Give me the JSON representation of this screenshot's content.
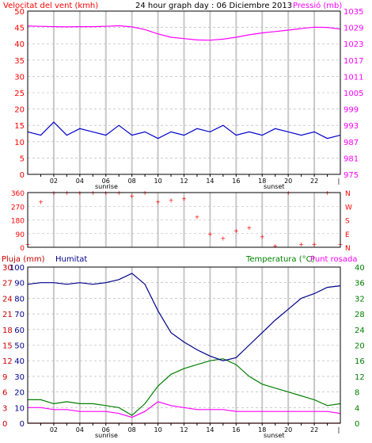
{
  "colors": {
    "wind": "#ff0000",
    "gust": "#ff0000",
    "wind_avg": "#0000cc",
    "wind_green": "#008000",
    "pressure": "#ff00ff",
    "humidity": "#00008b",
    "temperature": "#008000",
    "dewpoint": "#ff00ff",
    "rain": "#cc0000",
    "direction": "#ff0000"
  },
  "chart_data": [
    {
      "type": "line",
      "title": "24 hour graph day : 06 Diciembre 2013",
      "ylabel": "Velocitat del vent (kmh)",
      "y2label": "Pressió (mb)",
      "ylim": [
        0,
        50
      ],
      "yticks": [
        0,
        5,
        10,
        15,
        20,
        25,
        30,
        35,
        40,
        45,
        50
      ],
      "y2lim": [
        975,
        1035
      ],
      "y2ticks": [
        975,
        981,
        987,
        993,
        999,
        1005,
        1011,
        1017,
        1023,
        1029,
        1035
      ],
      "x": [
        0,
        1,
        2,
        3,
        4,
        5,
        6,
        7,
        8,
        9,
        10,
        11,
        12,
        13,
        14,
        15,
        16,
        17,
        18,
        19,
        20,
        21,
        22,
        23,
        24
      ],
      "xticklabels": [
        "02",
        "04",
        "06",
        "08",
        "10",
        "12",
        "14",
        "16",
        "18",
        "20",
        "22"
      ],
      "annotations": [
        "sunrise",
        "sunset"
      ],
      "grid": true,
      "series": [
        {
          "name": "Velocitat del vent (kmh)",
          "values": [
            13,
            12,
            16,
            12,
            14,
            13,
            12,
            15,
            12,
            13,
            11,
            13,
            12,
            14,
            13,
            15,
            12,
            13,
            12,
            14,
            13,
            12,
            13,
            11,
            12
          ]
        },
        {
          "name": "Pressió (mb)",
          "values": [
            1029.5,
            1029.4,
            1029.3,
            1029.2,
            1029.3,
            1029.3,
            1029.4,
            1029.6,
            1029.2,
            1028.2,
            1026.6,
            1025.4,
            1024.9,
            1024.4,
            1024.3,
            1024.7,
            1025.4,
            1026.3,
            1027.0,
            1027.5,
            1028.0,
            1028.6,
            1029.1,
            1029.0,
            1028.4
          ]
        }
      ]
    },
    {
      "type": "scatter",
      "title": "",
      "ylabel": "",
      "ylim": [
        0,
        360
      ],
      "yticks": [
        0,
        90,
        180,
        270,
        360
      ],
      "yticklabels": [
        "0",
        "90",
        "180",
        "270",
        "360"
      ],
      "y2ticklabels": [
        "N",
        "E",
        "S",
        "W",
        "N"
      ],
      "x": [
        0,
        1,
        2,
        3,
        4,
        5,
        6,
        7,
        8,
        9,
        10,
        11,
        12,
        13,
        14,
        15,
        16,
        17,
        18,
        19,
        20,
        21,
        22,
        23,
        24
      ],
      "xticklabels": [
        "02",
        "04",
        "06",
        "08",
        "10",
        "12",
        "14",
        "16",
        "18",
        "20",
        "22"
      ],
      "annotations": [
        "sunrise",
        "sunset"
      ],
      "grid": true,
      "series": [
        {
          "name": "",
          "values": [
            20,
            300,
            360,
            360,
            360,
            360,
            360,
            360,
            340,
            360,
            300,
            310,
            320,
            200,
            90,
            60,
            110,
            130,
            70,
            10,
            360,
            20,
            20,
            360,
            20
          ]
        }
      ]
    },
    {
      "type": "line",
      "title": "",
      "ylabel": "Pluja (mm)",
      "ylabel2": "Humitat",
      "y2label": "Temperatura (°C)",
      "y2label2": "Punt rosada",
      "ylim": [
        0,
        100
      ],
      "yticks": [
        0,
        10,
        20,
        30,
        40,
        50,
        60,
        70,
        80,
        90,
        100
      ],
      "ylim_rain": [
        0,
        30
      ],
      "yticks_rain": [
        0,
        3,
        6,
        9,
        12,
        15,
        18,
        21,
        24,
        27,
        30
      ],
      "y2lim": [
        0,
        40
      ],
      "y2ticks": [
        0,
        4,
        8,
        12,
        16,
        20,
        24,
        28,
        32,
        36,
        40
      ],
      "x": [
        0,
        1,
        2,
        3,
        4,
        5,
        6,
        7,
        8,
        9,
        10,
        11,
        12,
        13,
        14,
        15,
        16,
        17,
        18,
        19,
        20,
        21,
        22,
        23,
        24
      ],
      "xticklabels": [
        "02",
        "04",
        "06",
        "08",
        "10",
        "12",
        "14",
        "16",
        "18",
        "20",
        "22"
      ],
      "annotations": [
        "sunrise",
        "sunset"
      ],
      "grid": true,
      "series": [
        {
          "name": "Pluja (mm)",
          "values": [
            0,
            0,
            0,
            0,
            0,
            0,
            0,
            0,
            0,
            0,
            0,
            0,
            0,
            0,
            0,
            0,
            0,
            0,
            0,
            0,
            0,
            0,
            0,
            0,
            0
          ]
        },
        {
          "name": "Humitat",
          "values": [
            89,
            90,
            90,
            89,
            90,
            89,
            90,
            92,
            96,
            89,
            72,
            58,
            52,
            47,
            43,
            40,
            42,
            50,
            58,
            66,
            73,
            80,
            83,
            87,
            88
          ]
        },
        {
          "name": "Temperatura (°C)",
          "values": [
            6,
            6,
            5,
            5.5,
            5,
            5,
            4.5,
            4,
            2,
            5,
            9.5,
            12.5,
            14,
            15,
            16,
            16.5,
            15,
            12,
            10,
            9,
            8,
            7,
            6,
            4.5,
            5
          ]
        },
        {
          "name": "Punt rosada",
          "values": [
            4,
            4,
            3.5,
            3.5,
            3,
            3,
            3,
            2.5,
            1.5,
            3,
            5.5,
            4.5,
            4,
            3.5,
            3.5,
            3.5,
            3,
            3,
            3,
            3,
            3,
            3,
            3,
            3,
            2.5
          ]
        }
      ]
    }
  ]
}
